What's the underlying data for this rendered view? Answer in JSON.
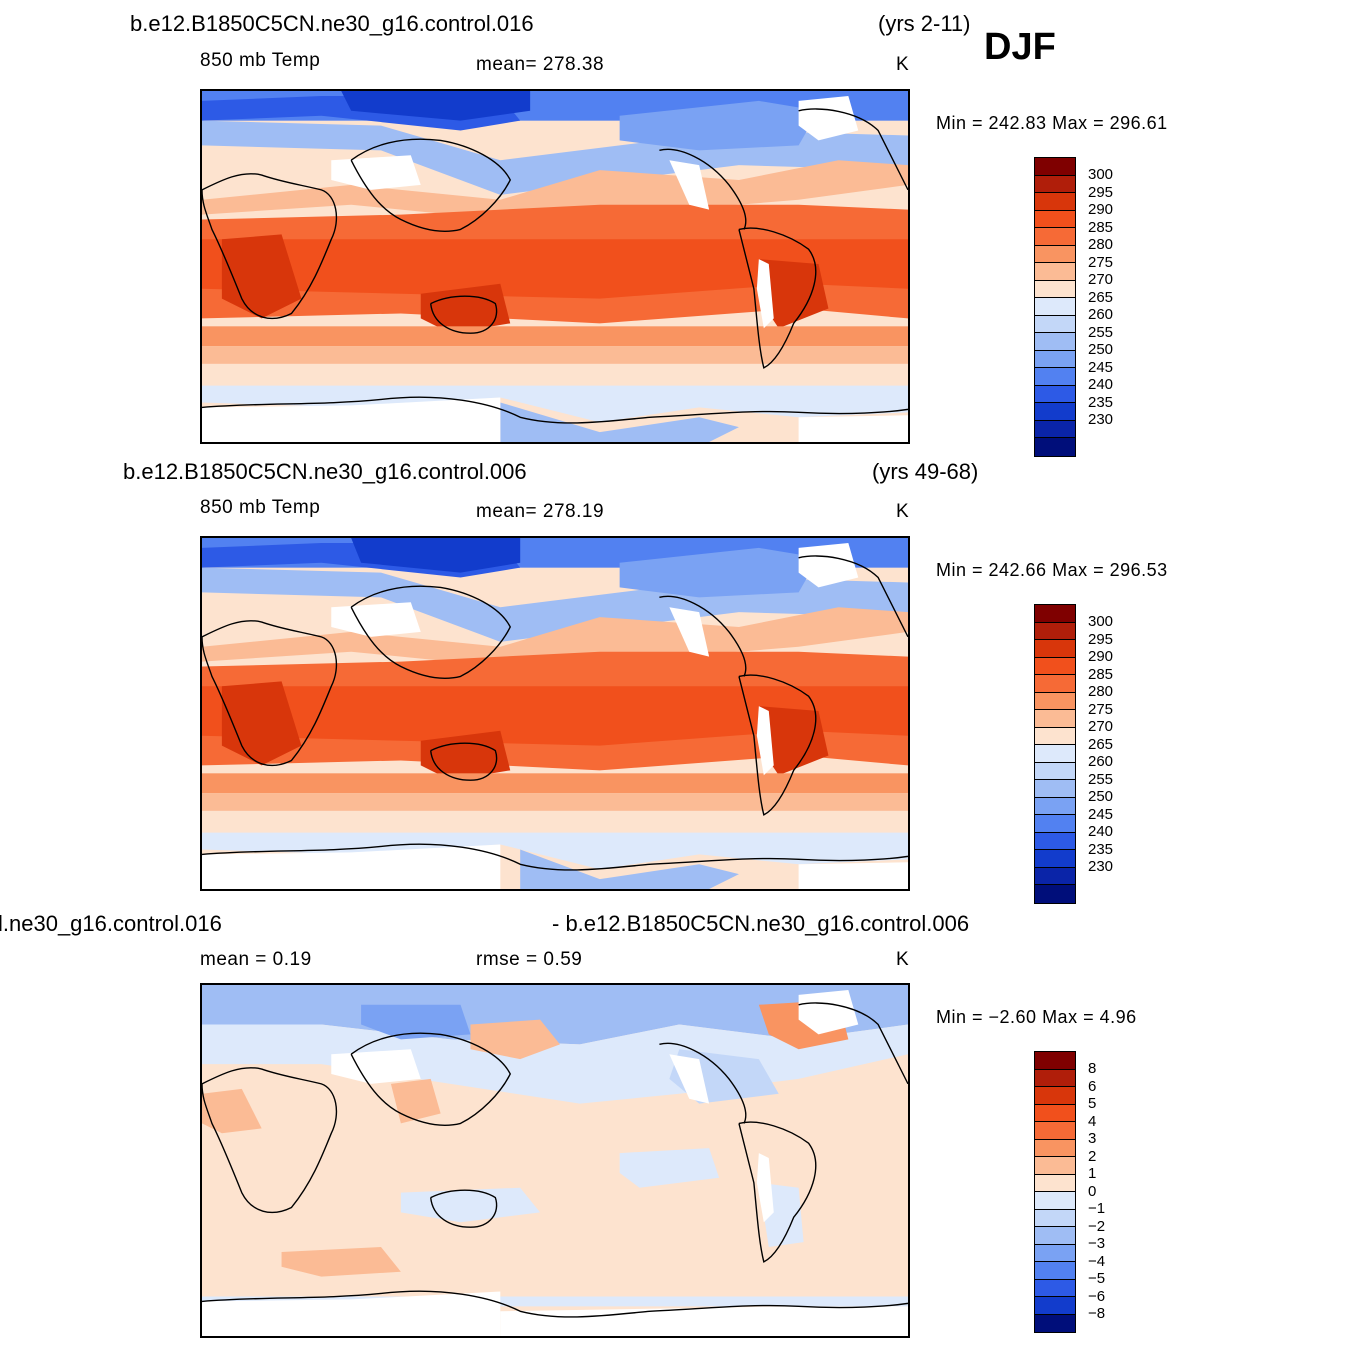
{
  "season": "DJF",
  "panels": [
    {
      "case": "b.e12.B1850C5CN.ne30_g16.control.016",
      "years": "(yrs 2-11)",
      "variable": "850 mb Temp",
      "stat_text": "mean=  278.38",
      "units": "K",
      "min_max": "Min  =  242.83  Max  =  296.61",
      "colorbar_labels": [
        "300",
        "295",
        "290",
        "285",
        "280",
        "275",
        "270",
        "265",
        "260",
        "255",
        "250",
        "245",
        "240",
        "235",
        "230"
      ]
    },
    {
      "case": "b.e12.B1850C5CN.ne30_g16.control.006",
      "years": "(yrs 49-68)",
      "variable": "850 mb Temp",
      "stat_text": "mean=  278.19",
      "units": "K",
      "min_max": "Min  =  242.66  Max  =  296.53",
      "colorbar_labels": [
        "300",
        "295",
        "290",
        "285",
        "280",
        "275",
        "270",
        "265",
        "260",
        "255",
        "250",
        "245",
        "240",
        "235",
        "230"
      ]
    },
    {
      "case": "l.ne30_g16.control.016",
      "years": "- b.e12.B1850C5CN.ne30_g16.control.006",
      "variable": "mean  =     0.19",
      "stat_text": "rmse  =     0.59",
      "units": "K",
      "min_max": "Min  =    −2.60  Max  =      4.96",
      "colorbar_labels": [
        "8",
        "6",
        "5",
        "4",
        "3",
        "2",
        "1",
        "0",
        "−1",
        "−2",
        "−3",
        "−4",
        "−5",
        "−6",
        "−8"
      ]
    }
  ],
  "colors": {
    "temp_scale": [
      "#7f0000",
      "#b01e0a",
      "#d8360b",
      "#f1501c",
      "#f66a36",
      "#f99461",
      "#fbbb95",
      "#fde3cf",
      "#dde9fb",
      "#c3d7f8",
      "#9fbdf4",
      "#7aa2f3",
      "#5281f1",
      "#2d5ae6",
      "#123ccc",
      "#0a24a8",
      "#000e7a"
    ],
    "diff_scale": [
      "#7f0000",
      "#b01e0a",
      "#d8360b",
      "#f1501c",
      "#f66a36",
      "#f99461",
      "#fbbb95",
      "#fde3cf",
      "#dde9fb",
      "#c3d7f8",
      "#9fbdf4",
      "#7aa2f3",
      "#5281f1",
      "#2d5ae6",
      "#123ccc",
      "#000e7a"
    ],
    "coastline": "#000000",
    "missing": "#ffffff"
  }
}
